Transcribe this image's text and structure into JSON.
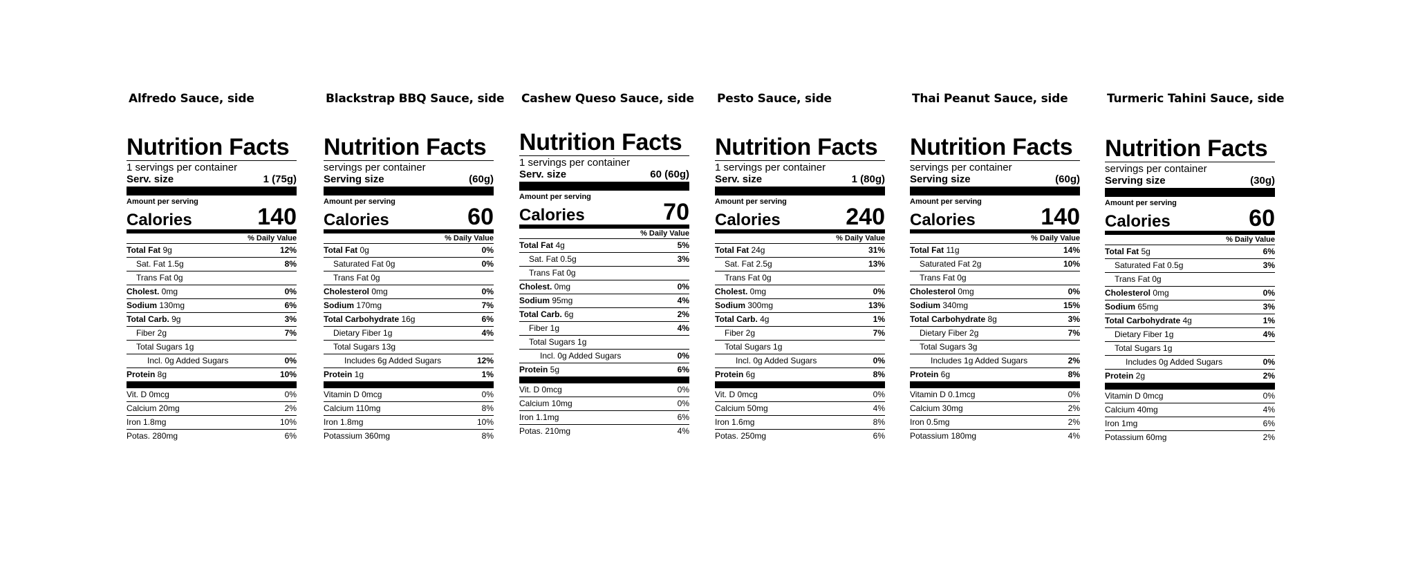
{
  "labels": [
    {
      "title": "Alfredo Sauce, side",
      "heading": "Nutrition Facts",
      "servings": "1 servings per container",
      "serv_label": "Serv. size",
      "serv_value": "1 (75g)",
      "amount": "Amount per serving",
      "calories_label": "Calories",
      "calories": "140",
      "dv_header": "% Daily Value",
      "rows": [
        {
          "label": "Total Fat",
          "value": " 9g",
          "pct": "12%",
          "bold": true,
          "indent": 0
        },
        {
          "label": "Sat. Fat 1.5g",
          "value": "",
          "pct": "8%",
          "bold": false,
          "indent": 1
        },
        {
          "label": "Trans Fat 0g",
          "value": "",
          "pct": "",
          "bold": false,
          "indent": 1
        },
        {
          "label": "Cholest.",
          "value": " 0mg",
          "pct": "0%",
          "bold": true,
          "indent": 0
        },
        {
          "label": "Sodium",
          "value": " 130mg",
          "pct": "6%",
          "bold": true,
          "indent": 0
        },
        {
          "label": "Total Carb.",
          "value": " 9g",
          "pct": "3%",
          "bold": true,
          "indent": 0
        },
        {
          "label": "Fiber 2g",
          "value": "",
          "pct": "7%",
          "bold": false,
          "indent": 1
        },
        {
          "label": "Total Sugars 1g",
          "value": "",
          "pct": "",
          "bold": false,
          "indent": 1
        },
        {
          "label": "Incl. 0g Added Sugars",
          "value": "",
          "pct": "0%",
          "bold": false,
          "indent": 2
        },
        {
          "label": "Protein",
          "value": " 8g",
          "pct": "10%",
          "bold": true,
          "indent": 0
        }
      ],
      "minerals": [
        {
          "label": "Vit. D 0mcg",
          "pct": "0%"
        },
        {
          "label": "Calcium 20mg",
          "pct": "2%"
        },
        {
          "label": "Iron 1.8mg",
          "pct": "10%"
        },
        {
          "label": "Potas. 280mg",
          "pct": "6%"
        }
      ]
    },
    {
      "title": "Blackstrap BBQ Sauce, side",
      "heading": "Nutrition Facts",
      "servings": "servings per container",
      "serv_label": "Serving size",
      "serv_value": "(60g)",
      "amount": "Amount per serving",
      "calories_label": "Calories",
      "calories": "60",
      "dv_header": "% Daily Value",
      "rows": [
        {
          "label": "Total Fat",
          "value": " 0g",
          "pct": "0%",
          "bold": true,
          "indent": 0
        },
        {
          "label": "Saturated Fat 0g",
          "value": "",
          "pct": "0%",
          "bold": false,
          "indent": 1
        },
        {
          "label": "Trans Fat 0g",
          "value": "",
          "pct": "",
          "bold": false,
          "indent": 1
        },
        {
          "label": "Cholesterol",
          "value": " 0mg",
          "pct": "0%",
          "bold": true,
          "indent": 0
        },
        {
          "label": "Sodium",
          "value": " 170mg",
          "pct": "7%",
          "bold": true,
          "indent": 0
        },
        {
          "label": "Total Carbohydrate",
          "value": " 16g",
          "pct": "6%",
          "bold": true,
          "indent": 0
        },
        {
          "label": "Dietary Fiber 1g",
          "value": "",
          "pct": "4%",
          "bold": false,
          "indent": 1
        },
        {
          "label": "Total Sugars 13g",
          "value": "",
          "pct": "",
          "bold": false,
          "indent": 1
        },
        {
          "label": "Includes 6g Added Sugars",
          "value": "",
          "pct": "12%",
          "bold": false,
          "indent": 2
        },
        {
          "label": "Protein",
          "value": " 1g",
          "pct": "1%",
          "bold": true,
          "indent": 0
        }
      ],
      "minerals": [
        {
          "label": "Vitamin D 0mcg",
          "pct": "0%"
        },
        {
          "label": "Calcium 110mg",
          "pct": "8%"
        },
        {
          "label": "Iron 1.8mg",
          "pct": "10%"
        },
        {
          "label": "Potassium 360mg",
          "pct": "8%"
        }
      ]
    },
    {
      "title": "Cashew Queso Sauce, side",
      "heading": "Nutrition Facts",
      "servings": "1 servings per container",
      "serv_label": "Serv. size",
      "serv_value": "60 (60g)",
      "amount": "Amount per serving",
      "calories_label": "Calories",
      "calories": "70",
      "dv_header": "% Daily Value",
      "rows": [
        {
          "label": "Total Fat",
          "value": " 4g",
          "pct": "5%",
          "bold": true,
          "indent": 0
        },
        {
          "label": "Sat. Fat 0.5g",
          "value": "",
          "pct": "3%",
          "bold": false,
          "indent": 1
        },
        {
          "label": "Trans Fat 0g",
          "value": "",
          "pct": "",
          "bold": false,
          "indent": 1
        },
        {
          "label": "Cholest.",
          "value": " 0mg",
          "pct": "0%",
          "bold": true,
          "indent": 0
        },
        {
          "label": "Sodium",
          "value": " 95mg",
          "pct": "4%",
          "bold": true,
          "indent": 0
        },
        {
          "label": "Total Carb.",
          "value": " 6g",
          "pct": "2%",
          "bold": true,
          "indent": 0
        },
        {
          "label": "Fiber 1g",
          "value": "",
          "pct": "4%",
          "bold": false,
          "indent": 1
        },
        {
          "label": "Total Sugars 1g",
          "value": "",
          "pct": "",
          "bold": false,
          "indent": 1
        },
        {
          "label": "Incl. 0g Added Sugars",
          "value": "",
          "pct": "0%",
          "bold": false,
          "indent": 2
        },
        {
          "label": "Protein",
          "value": " 5g",
          "pct": "6%",
          "bold": true,
          "indent": 0
        }
      ],
      "minerals": [
        {
          "label": "Vit. D 0mcg",
          "pct": "0%"
        },
        {
          "label": "Calcium 10mg",
          "pct": "0%"
        },
        {
          "label": "Iron 1.1mg",
          "pct": "6%"
        },
        {
          "label": "Potas. 210mg",
          "pct": "4%"
        }
      ]
    },
    {
      "title": "Pesto Sauce, side",
      "heading": "Nutrition Facts",
      "servings": "1 servings per container",
      "serv_label": "Serv. size",
      "serv_value": "1 (80g)",
      "amount": "Amount per serving",
      "calories_label": "Calories",
      "calories": "240",
      "dv_header": "% Daily Value",
      "rows": [
        {
          "label": "Total Fat",
          "value": " 24g",
          "pct": "31%",
          "bold": true,
          "indent": 0
        },
        {
          "label": "Sat. Fat 2.5g",
          "value": "",
          "pct": "13%",
          "bold": false,
          "indent": 1
        },
        {
          "label": "Trans Fat 0g",
          "value": "",
          "pct": "",
          "bold": false,
          "indent": 1
        },
        {
          "label": "Cholest.",
          "value": " 0mg",
          "pct": "0%",
          "bold": true,
          "indent": 0
        },
        {
          "label": "Sodium",
          "value": " 300mg",
          "pct": "13%",
          "bold": true,
          "indent": 0
        },
        {
          "label": "Total Carb.",
          "value": " 4g",
          "pct": "1%",
          "bold": true,
          "indent": 0
        },
        {
          "label": "Fiber 2g",
          "value": "",
          "pct": "7%",
          "bold": false,
          "indent": 1
        },
        {
          "label": "Total Sugars 1g",
          "value": "",
          "pct": "",
          "bold": false,
          "indent": 1
        },
        {
          "label": "Incl. 0g Added Sugars",
          "value": "",
          "pct": "0%",
          "bold": false,
          "indent": 2
        },
        {
          "label": "Protein",
          "value": " 6g",
          "pct": "8%",
          "bold": true,
          "indent": 0
        }
      ],
      "minerals": [
        {
          "label": "Vit. D 0mcg",
          "pct": "0%"
        },
        {
          "label": "Calcium 50mg",
          "pct": "4%"
        },
        {
          "label": "Iron 1.6mg",
          "pct": "8%"
        },
        {
          "label": "Potas. 250mg",
          "pct": "6%"
        }
      ]
    },
    {
      "title": "Thai Peanut Sauce, side",
      "heading": "Nutrition Facts",
      "servings": "servings per container",
      "serv_label": "Serving size",
      "serv_value": "(60g)",
      "amount": "Amount per serving",
      "calories_label": "Calories",
      "calories": "140",
      "dv_header": "% Daily Value",
      "rows": [
        {
          "label": "Total Fat",
          "value": " 11g",
          "pct": "14%",
          "bold": true,
          "indent": 0
        },
        {
          "label": "Saturated Fat 2g",
          "value": "",
          "pct": "10%",
          "bold": false,
          "indent": 1
        },
        {
          "label": "Trans Fat 0g",
          "value": "",
          "pct": "",
          "bold": false,
          "indent": 1
        },
        {
          "label": "Cholesterol",
          "value": " 0mg",
          "pct": "0%",
          "bold": true,
          "indent": 0
        },
        {
          "label": "Sodium",
          "value": " 340mg",
          "pct": "15%",
          "bold": true,
          "indent": 0
        },
        {
          "label": "Total Carbohydrate",
          "value": " 8g",
          "pct": "3%",
          "bold": true,
          "indent": 0
        },
        {
          "label": "Dietary Fiber 2g",
          "value": "",
          "pct": "7%",
          "bold": false,
          "indent": 1
        },
        {
          "label": "Total Sugars 3g",
          "value": "",
          "pct": "",
          "bold": false,
          "indent": 1
        },
        {
          "label": "Includes 1g Added Sugars",
          "value": "",
          "pct": "2%",
          "bold": false,
          "indent": 2
        },
        {
          "label": "Protein",
          "value": " 6g",
          "pct": "8%",
          "bold": true,
          "indent": 0
        }
      ],
      "minerals": [
        {
          "label": "Vitamin D 0.1mcg",
          "pct": "0%"
        },
        {
          "label": "Calcium 30mg",
          "pct": "2%"
        },
        {
          "label": "Iron 0.5mg",
          "pct": "2%"
        },
        {
          "label": "Potassium 180mg",
          "pct": "4%"
        }
      ]
    },
    {
      "title": "Turmeric Tahini Sauce, side",
      "heading": "Nutrition Facts",
      "servings": "servings per container",
      "serv_label": "Serving size",
      "serv_value": "(30g)",
      "amount": "Amount per serving",
      "calories_label": "Calories",
      "calories": "60",
      "dv_header": "% Daily Value",
      "rows": [
        {
          "label": "Total Fat",
          "value": " 5g",
          "pct": "6%",
          "bold": true,
          "indent": 0
        },
        {
          "label": "Saturated Fat 0.5g",
          "value": "",
          "pct": "3%",
          "bold": false,
          "indent": 1
        },
        {
          "label": "Trans Fat 0g",
          "value": "",
          "pct": "",
          "bold": false,
          "indent": 1
        },
        {
          "label": "Cholesterol",
          "value": " 0mg",
          "pct": "0%",
          "bold": true,
          "indent": 0
        },
        {
          "label": "Sodium",
          "value": " 65mg",
          "pct": "3%",
          "bold": true,
          "indent": 0
        },
        {
          "label": "Total Carbohydrate",
          "value": " 4g",
          "pct": "1%",
          "bold": true,
          "indent": 0
        },
        {
          "label": "Dietary Fiber 1g",
          "value": "",
          "pct": "4%",
          "bold": false,
          "indent": 1
        },
        {
          "label": "Total Sugars 1g",
          "value": "",
          "pct": "",
          "bold": false,
          "indent": 1
        },
        {
          "label": "Includes 0g Added Sugars",
          "value": "",
          "pct": "0%",
          "bold": false,
          "indent": 2
        },
        {
          "label": "Protein",
          "value": " 2g",
          "pct": "2%",
          "bold": true,
          "indent": 0
        }
      ],
      "minerals": [
        {
          "label": "Vitamin D 0mcg",
          "pct": "0%"
        },
        {
          "label": "Calcium 40mg",
          "pct": "4%"
        },
        {
          "label": "Iron 1mg",
          "pct": "6%"
        },
        {
          "label": "Potassium 60mg",
          "pct": "2%"
        }
      ]
    }
  ]
}
